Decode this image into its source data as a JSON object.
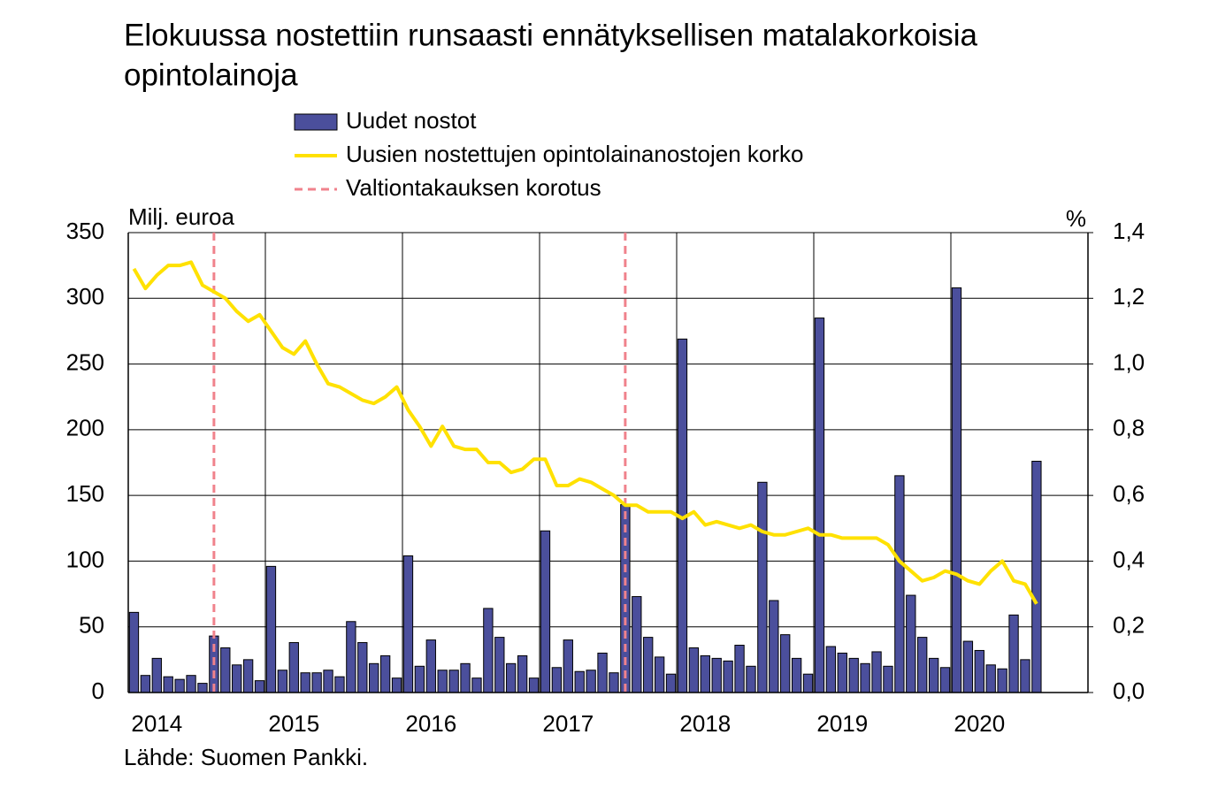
{
  "chart_data": {
    "type": "bar",
    "title": "Elokuussa nostettiin runsaasti ennätyksellisen matalakorkoisia",
    "title_line2": "opintolainoja",
    "y_label": "Milj. euroa",
    "y2_label": "%",
    "source": "Lähde: Suomen Pankki.",
    "categories": [
      null,
      null,
      "2014",
      null,
      null,
      null,
      null,
      null,
      null,
      null,
      null,
      null,
      null,
      null,
      "2015",
      null,
      null,
      null,
      null,
      null,
      null,
      null,
      null,
      null,
      null,
      null,
      "2016",
      null,
      null,
      null,
      null,
      null,
      null,
      null,
      null,
      null,
      null,
      null,
      "2017",
      null,
      null,
      null,
      null,
      null,
      null,
      null,
      null,
      null,
      null,
      null,
      "2018",
      null,
      null,
      null,
      null,
      null,
      null,
      null,
      null,
      null,
      null,
      null,
      "2019",
      null,
      null,
      null,
      null,
      null,
      null,
      null,
      null,
      null,
      null,
      null,
      "2020",
      null,
      null,
      null,
      null,
      null,
      null,
      null,
      null,
      null
    ],
    "series": [
      {
        "name": "Uudet nostot",
        "type": "bar",
        "color": "#4b4f9c",
        "values": [
          61,
          13,
          26,
          12,
          10,
          13,
          7,
          43,
          34,
          21,
          25,
          9,
          96,
          17,
          38,
          15,
          15,
          17,
          12,
          54,
          38,
          22,
          28,
          11,
          104,
          20,
          40,
          17,
          17,
          22,
          11,
          64,
          42,
          22,
          28,
          11,
          123,
          19,
          40,
          16,
          17,
          30,
          15,
          143,
          73,
          42,
          27,
          14,
          269,
          34,
          28,
          26,
          24,
          36,
          20,
          160,
          70,
          44,
          26,
          14,
          285,
          35,
          30,
          26,
          22,
          31,
          20,
          165,
          74,
          42,
          26,
          19,
          308,
          39,
          32,
          21,
          18,
          59,
          25,
          176,
          null,
          null,
          null,
          null
        ]
      },
      {
        "name": "Uusien nostettujen opintolainanostojen korko",
        "type": "line",
        "axis": "y2",
        "color": "#ffe100",
        "values": [
          1.29,
          1.23,
          1.27,
          1.3,
          1.3,
          1.31,
          1.24,
          1.22,
          1.2,
          1.16,
          1.13,
          1.15,
          1.1,
          1.05,
          1.03,
          1.07,
          1.0,
          0.94,
          0.93,
          0.91,
          0.89,
          0.88,
          0.9,
          0.93,
          0.86,
          0.81,
          0.75,
          0.81,
          0.75,
          0.74,
          0.74,
          0.7,
          0.7,
          0.67,
          0.68,
          0.71,
          0.71,
          0.63,
          0.63,
          0.65,
          0.64,
          0.62,
          0.6,
          0.57,
          0.57,
          0.55,
          0.55,
          0.55,
          0.53,
          0.55,
          0.51,
          0.52,
          0.51,
          0.5,
          0.51,
          0.49,
          0.48,
          0.48,
          0.49,
          0.5,
          0.48,
          0.48,
          0.47,
          0.47,
          0.47,
          0.47,
          0.45,
          0.4,
          0.37,
          0.34,
          0.35,
          0.37,
          0.36,
          0.34,
          0.33,
          0.37,
          0.4,
          0.34,
          0.33,
          0.27,
          null,
          null,
          null,
          null
        ]
      },
      {
        "name": "Valtiontakauksen korotus",
        "type": "vline",
        "color": "#f0828c",
        "at": [
          7,
          43
        ]
      }
    ],
    "ylim": [
      0,
      350
    ],
    "yticks": [
      0,
      50,
      100,
      150,
      200,
      250,
      300,
      350
    ],
    "y2lim": [
      0,
      1.4
    ],
    "y2ticks": [
      {
        "value": 0,
        "label": "0,0"
      },
      {
        "value": 0.2,
        "label": "0,2"
      },
      {
        "value": 0.4,
        "label": "0,4"
      },
      {
        "value": 0.6,
        "label": "0,6"
      },
      {
        "value": 0.8,
        "label": "0,8"
      },
      {
        "value": 1,
        "label": "1,0"
      },
      {
        "value": 1.2,
        "label": "1,2"
      },
      {
        "value": 1.4,
        "label": "1,4"
      }
    ],
    "grid": true,
    "legend": "top"
  }
}
